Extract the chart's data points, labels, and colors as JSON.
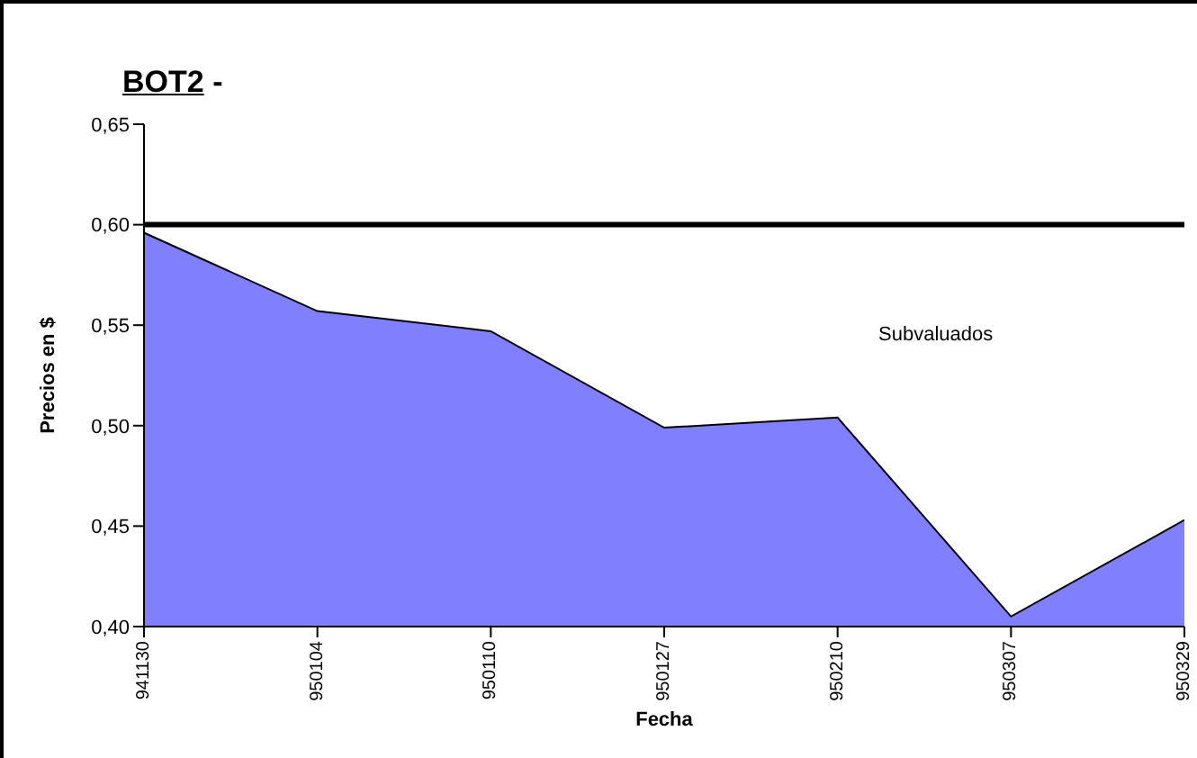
{
  "chart_data": {
    "type": "area",
    "title": "BOT2 -",
    "xlabel": "Fecha",
    "ylabel": "Precios en $",
    "categories": [
      "941130",
      "950104",
      "950110",
      "950127",
      "950210",
      "950307",
      "950329"
    ],
    "series": [
      {
        "color": "#8080ff",
        "values": [
          0.596,
          0.557,
          0.547,
          0.499,
          0.504,
          0.405,
          0.453
        ]
      }
    ],
    "ylim": [
      0.4,
      0.65
    ],
    "yticks": [
      {
        "value": 0.4,
        "label": "0,40"
      },
      {
        "value": 0.45,
        "label": "0,45"
      },
      {
        "value": 0.5,
        "label": "0,50"
      },
      {
        "value": 0.55,
        "label": "0,55"
      },
      {
        "value": 0.6,
        "label": "0,60"
      },
      {
        "value": 0.65,
        "label": "0,65"
      }
    ],
    "ref_lines": [
      {
        "axis": "y",
        "value": 0.6,
        "color": "#000000"
      }
    ],
    "annotations": [
      "Subvaluados"
    ],
    "grid": false,
    "legend": false
  }
}
